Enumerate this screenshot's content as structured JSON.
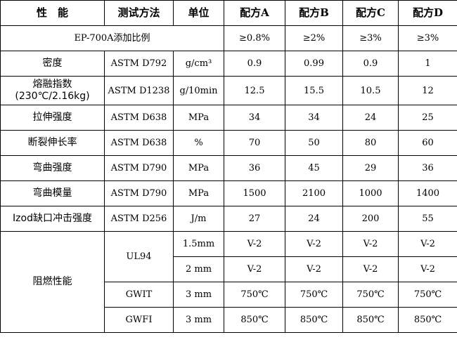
{
  "header": [
    "性　能",
    "测试方法",
    "单位",
    "配方A",
    "配方B",
    "配方C",
    "配方D"
  ],
  "ratio_row": {
    "label": "EP-700A添加比例",
    "values": [
      "≥0.8%",
      "≥2%",
      "≥3%",
      "≥3%"
    ]
  },
  "rows": [
    {
      "property": "密度",
      "method": "ASTM D792",
      "unit": "g/cm³",
      "values": [
        "0.9",
        "0.99",
        "0.9",
        "1"
      ]
    },
    {
      "property": "熔融指数(230℃/2.16kg)",
      "method": "ASTM D1238",
      "unit": "g/10min",
      "values": [
        "12.5",
        "15.5",
        "10.5",
        "12"
      ]
    },
    {
      "property": "拉伸强度",
      "method": "ASTM D638",
      "unit": "MPa",
      "values": [
        "34",
        "34",
        "24",
        "25"
      ]
    },
    {
      "property": "断裂伸长率",
      "method": "ASTM D638",
      "unit": "%",
      "values": [
        "70",
        "50",
        "80",
        "60"
      ]
    },
    {
      "property": "弯曲强度",
      "method": "ASTM D790",
      "unit": "MPa",
      "values": [
        "36",
        "45",
        "29",
        "36"
      ]
    },
    {
      "property": "弯曲模量",
      "method": "ASTM D790",
      "unit": "MPa",
      "values": [
        "1500",
        "2100",
        "1000",
        "1400"
      ]
    },
    {
      "property": "Izod缺口冲击强度",
      "method": "ASTM D256",
      "unit": "J/m",
      "values": [
        "27",
        "24",
        "200",
        "55"
      ]
    }
  ],
  "flame": {
    "property": "阻燃性能",
    "ul94": {
      "method": "UL94",
      "rows": [
        {
          "unit": "1.5mm",
          "values": [
            "V-2",
            "V-2",
            "V-2",
            "V-2"
          ]
        },
        {
          "unit": "2 mm",
          "values": [
            "V-2",
            "V-2",
            "V-2",
            "V-2"
          ]
        }
      ]
    },
    "gwit": {
      "method": "GWIT",
      "unit": "3 mm",
      "values": [
        "750℃",
        "750℃",
        "750℃",
        "750℃"
      ]
    },
    "gwfi": {
      "method": "GWFI",
      "unit": "3 mm",
      "values": [
        "850℃",
        "850℃",
        "850℃",
        "850℃"
      ]
    }
  }
}
